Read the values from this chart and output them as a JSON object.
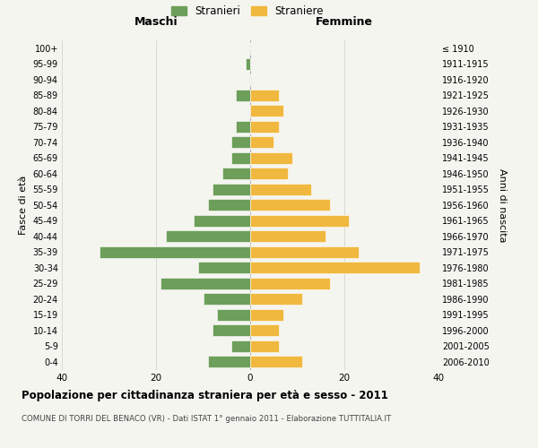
{
  "age_groups": [
    "0-4",
    "5-9",
    "10-14",
    "15-19",
    "20-24",
    "25-29",
    "30-34",
    "35-39",
    "40-44",
    "45-49",
    "50-54",
    "55-59",
    "60-64",
    "65-69",
    "70-74",
    "75-79",
    "80-84",
    "85-89",
    "90-94",
    "95-99",
    "100+"
  ],
  "birth_years": [
    "2006-2010",
    "2001-2005",
    "1996-2000",
    "1991-1995",
    "1986-1990",
    "1981-1985",
    "1976-1980",
    "1971-1975",
    "1966-1970",
    "1961-1965",
    "1956-1960",
    "1951-1955",
    "1946-1950",
    "1941-1945",
    "1936-1940",
    "1931-1935",
    "1926-1930",
    "1921-1925",
    "1916-1920",
    "1911-1915",
    "≤ 1910"
  ],
  "maschi": [
    9,
    4,
    8,
    7,
    10,
    19,
    11,
    32,
    18,
    12,
    9,
    8,
    6,
    4,
    4,
    3,
    0,
    3,
    0,
    1,
    0
  ],
  "femmine": [
    11,
    6,
    6,
    7,
    11,
    17,
    36,
    23,
    16,
    21,
    17,
    13,
    8,
    9,
    5,
    6,
    7,
    6,
    0,
    0,
    0
  ],
  "color_maschi": "#6d9e5a",
  "color_femmine": "#f0b83f",
  "title": "Popolazione per cittadinanza straniera per età e sesso - 2011",
  "subtitle": "COMUNE DI TORRI DEL BENACO (VR) - Dati ISTAT 1° gennaio 2011 - Elaborazione TUTTITALIA.IT",
  "xlabel_maschi": "Maschi",
  "xlabel_femmine": "Femmine",
  "ylabel_left": "Fasce di età",
  "ylabel_right": "Anni di nascita",
  "legend_maschi": "Stranieri",
  "legend_femmine": "Straniere",
  "xlim": 40,
  "bg_color": "#f5f5f0",
  "grid_color": "#cccccc"
}
